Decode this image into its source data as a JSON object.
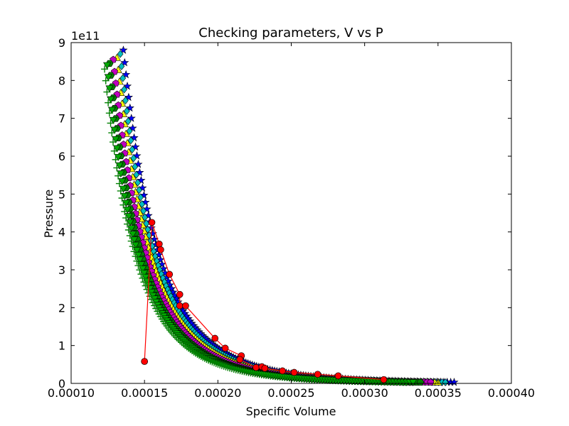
{
  "chart_data": {
    "type": "scatter",
    "title": "Checking parameters, V vs P",
    "xlabel": "Specific Volume",
    "ylabel": "Pressure",
    "offset_text": "1e11",
    "xlim": [
      0.0001,
      0.0004
    ],
    "ylim": [
      0,
      9
    ],
    "xticks": [
      0.0001,
      0.00015,
      0.0002,
      0.00025,
      0.0003,
      0.00035,
      0.0004
    ],
    "xtick_labels": [
      "0.00010",
      "0.00015",
      "0.00020",
      "0.00025",
      "0.00030",
      "0.00035",
      "0.00040"
    ],
    "yticks": [
      0,
      1,
      2,
      3,
      4,
      5,
      6,
      7,
      8,
      9
    ],
    "ytick_labels": [
      "0",
      "1",
      "2",
      "3",
      "4",
      "5",
      "6",
      "7",
      "8",
      "9"
    ],
    "grid": false,
    "families": [
      {
        "marker": "star",
        "color": "#0000ff",
        "v_at_top": 0.0001356,
        "p_top": 8.8,
        "v_end": 0.000361,
        "line": false
      },
      {
        "marker": "diamond",
        "color": "#00bfbf",
        "v_at_top": 0.0001335,
        "p_top": 8.7,
        "v_end": 0.000355,
        "line": false
      },
      {
        "marker": "triangle-up",
        "color": "#ffff00",
        "v_at_top": 0.0001312,
        "p_top": 8.6,
        "v_end": 0.00035,
        "line": false
      },
      {
        "marker": "pentagon",
        "color": "#bf00bf",
        "v_at_top": 0.0001287,
        "p_top": 8.55,
        "v_end": 0.000345,
        "line": false
      },
      {
        "marker": "hexagon",
        "color": "#008000",
        "v_at_top": 0.0001262,
        "p_top": 8.45,
        "v_end": 0.000338,
        "line": false
      },
      {
        "marker": "triangle-down",
        "color": "#00aa00",
        "v_at_top": 0.0001245,
        "p_top": 8.4,
        "v_end": 0.000333,
        "line": false
      },
      {
        "marker": "plus",
        "color": "#008000",
        "v_at_top": 0.0001228,
        "p_top": 8.3,
        "v_end": 0.000328,
        "line": false
      }
    ],
    "series": [
      {
        "marker": "circle",
        "color": "#ff0000",
        "line": true,
        "x": [
          0.00015,
          0.000155,
          0.00016,
          0.000161,
          0.000167,
          0.000174,
          0.000174,
          0.000178,
          0.000198,
          0.000205,
          0.000216,
          0.000215,
          0.000226,
          0.00023,
          0.000232,
          0.000244,
          0.000252,
          0.000268,
          0.000282,
          0.000313
        ],
        "y": [
          0.58,
          4.25,
          3.68,
          3.53,
          2.88,
          2.35,
          2.05,
          2.05,
          1.19,
          0.93,
          0.73,
          0.63,
          0.42,
          0.44,
          0.4,
          0.33,
          0.29,
          0.24,
          0.2,
          0.1
        ]
      }
    ]
  }
}
